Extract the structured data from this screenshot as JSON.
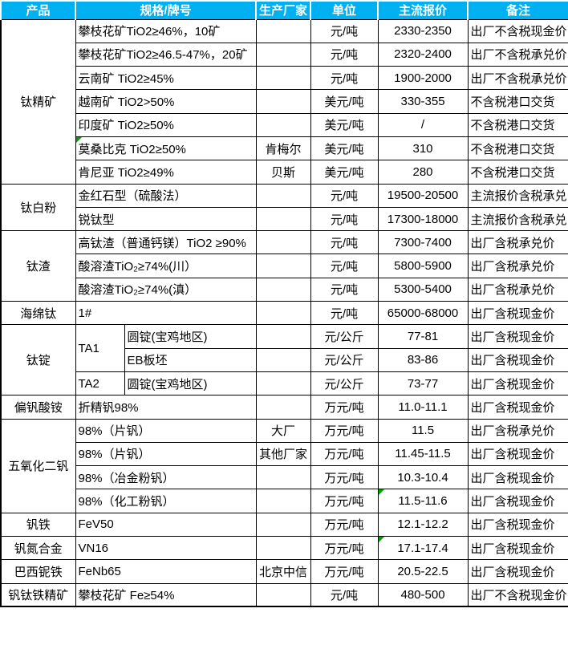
{
  "table": {
    "colors": {
      "header_bg": "#00B0F0",
      "header_text": "#FFFFFF",
      "border": "#000000",
      "flag_green": "#00A000"
    },
    "columns": [
      "产品",
      "规格/牌号",
      "生产厂家",
      "单位",
      "主流报价",
      "备注"
    ],
    "groups": [
      {
        "product": "钛精矿",
        "rows": [
          {
            "spec": "攀枝花矿TiO2≥46%，10矿",
            "unit": "元/吨",
            "price": "2330-2350",
            "note": "出厂不含税现金价"
          },
          {
            "spec": "攀枝花矿TiO2≥46.5-47%，20矿",
            "unit": "元/吨",
            "price": "2320-2400",
            "note": "出厂不含税承兑价"
          },
          {
            "spec": "云南矿 TiO2≥45%",
            "unit": "元/吨",
            "price": "1900-2000",
            "note": "出厂不含税承兑价"
          },
          {
            "spec": "越南矿 TiO2>50%",
            "unit": "美元/吨",
            "price": "330-355",
            "note": "不含税港口交货"
          },
          {
            "spec": "印度矿 TiO2≥50%",
            "unit": "美元/吨",
            "price": "/",
            "note": "不含税港口交货"
          },
          {
            "spec": "莫桑比克 TiO2≥50%",
            "spec_flag": true,
            "maker": "肯梅尔",
            "unit": "美元/吨",
            "price": "310",
            "note": "不含税港口交货"
          },
          {
            "spec": "肯尼亚 TiO2≥49%",
            "maker": "贝斯",
            "unit": "美元/吨",
            "price": "280",
            "note": "不含税港口交货"
          }
        ]
      },
      {
        "product": "钛白粉",
        "rows": [
          {
            "spec": "金红石型（硫酸法）",
            "unit": "元/吨",
            "price": "19500-20500",
            "note": "主流报价含税承兑"
          },
          {
            "spec": "锐钛型",
            "unit": "元/吨",
            "price": "17300-18000",
            "note": "主流报价含税承兑"
          }
        ]
      },
      {
        "product": "钛渣",
        "rows": [
          {
            "spec": "高钛渣（普通钙镁）TiO2 ≥90%",
            "unit": "元/吨",
            "price": "7300-7400",
            "note": "出厂含税承兑价"
          },
          {
            "spec": "酸溶渣TiO₂≥74%(川）",
            "unit": "元/吨",
            "price": "5800-5900",
            "note": "出厂含税承兑价"
          },
          {
            "spec": "酸溶渣TiO₂≥74%(滇）",
            "unit": "元/吨",
            "price": "5300-5400",
            "note": "出厂含税承兑价"
          }
        ]
      },
      {
        "product": "海绵钛",
        "rows": [
          {
            "spec": "1#",
            "unit": "元/吨",
            "price": "65000-68000",
            "note": "出厂含税现金价"
          }
        ]
      },
      {
        "product": "钛锭",
        "rows": [
          {
            "grade": "TA1",
            "grade_rowspan": 2,
            "spec": "圆锭(宝鸡地区)",
            "unit": "元/公斤",
            "price": "77-81",
            "note": "出厂含税现金价"
          },
          {
            "grade_merged": true,
            "spec": "EB板坯",
            "unit": "元/公斤",
            "price": "83-86",
            "note": "出厂含税现金价"
          },
          {
            "grade": "TA2",
            "grade_rowspan": 1,
            "spec": "圆锭(宝鸡地区)",
            "unit": "元/公斤",
            "price": "73-77",
            "note": "出厂含税现金价"
          }
        ]
      },
      {
        "product": "偏钒酸铵",
        "rows": [
          {
            "spec": "折精钒98%",
            "unit": "万元/吨",
            "price": "11.0-11.1",
            "note": "出厂含税现金价"
          }
        ]
      },
      {
        "product": "五氧化二钒",
        "rows": [
          {
            "spec": "98%（片钒）",
            "maker": "大厂",
            "unit": "万元/吨",
            "price": "11.5",
            "note": "出厂含税承兑价"
          },
          {
            "spec": "98%（片钒）",
            "maker": "其他厂家",
            "unit": "万元/吨",
            "price": "11.45-11.5",
            "note": "出厂含税现金价"
          },
          {
            "spec": "98%（冶金粉钒）",
            "unit": "万元/吨",
            "price": "10.3-10.4",
            "note": "出厂含税现金价"
          },
          {
            "spec": "98%（化工粉钒）",
            "unit": "万元/吨",
            "price": "11.5-11.6",
            "price_flag": true,
            "note": "出厂含税现金价"
          }
        ]
      },
      {
        "product": "钒铁",
        "rows": [
          {
            "spec": "FeV50",
            "unit": "万元/吨",
            "price": "12.1-12.2",
            "note": "出厂含税现金价"
          }
        ]
      },
      {
        "product": "钒氮合金",
        "rows": [
          {
            "spec": "VN16",
            "unit": "万元/吨",
            "price": "17.1-17.4",
            "price_flag": true,
            "note": "出厂含税现金价"
          }
        ]
      },
      {
        "product": "巴西铌铁",
        "rows": [
          {
            "spec": "FeNb65",
            "maker": "北京中信",
            "unit": "万元/吨",
            "price": "20.5-22.5",
            "note": "出厂含税现金价"
          }
        ]
      },
      {
        "product": "钒钛铁精矿",
        "rows": [
          {
            "spec": "攀枝花矿 Fe≥54%",
            "unit": "元/吨",
            "price": "480-500",
            "note": "出厂不含税现金价"
          }
        ]
      }
    ]
  }
}
